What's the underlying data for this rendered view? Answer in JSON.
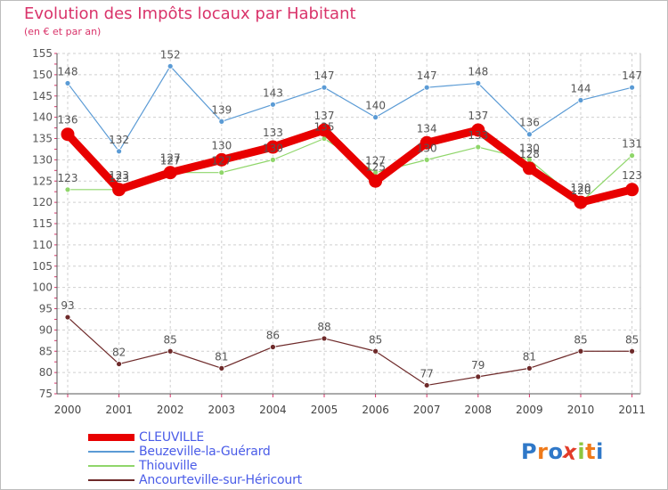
{
  "chart_data": {
    "type": "line",
    "title": "Evolution des Impôts locaux par Habitant",
    "subtitle": "(en € et par an)",
    "categories": [
      "2000",
      "2001",
      "2002",
      "2003",
      "2004",
      "2005",
      "2006",
      "2007",
      "2008",
      "2009",
      "2010",
      "2011"
    ],
    "ylim": [
      75,
      155
    ],
    "yticks": [
      75,
      80,
      85,
      90,
      95,
      100,
      105,
      110,
      115,
      120,
      125,
      130,
      135,
      140,
      145,
      150,
      155
    ],
    "grid": true,
    "legend_position": "bottom-left",
    "series": [
      {
        "name": "CLEUVILLE",
        "color": "#e80000",
        "values": [
          136,
          123,
          127,
          130,
          133,
          137,
          125,
          134,
          137,
          128,
          120,
          123
        ]
      },
      {
        "name": "Beuzeville-la-Guérard",
        "color": "#5b9bd5",
        "values": [
          148,
          132,
          152,
          139,
          143,
          147,
          140,
          147,
          148,
          136,
          144,
          147
        ]
      },
      {
        "name": "Thiouville",
        "color": "#8fd66a",
        "values": [
          123,
          123,
          127,
          127,
          130,
          135,
          127,
          130,
          133,
          130,
          120,
          131
        ]
      },
      {
        "name": "Ancourteville-sur-Héricourt",
        "color": "#6e2a2a",
        "values": [
          93,
          82,
          85,
          81,
          86,
          88,
          85,
          77,
          79,
          81,
          85,
          85
        ]
      }
    ]
  },
  "logo": {
    "letters": [
      "P",
      "r",
      "o",
      "x",
      "i",
      "t",
      "i"
    ],
    "colors": [
      "#2f78c8",
      "#ef7a1a",
      "#2f78c8",
      "#e23c2a",
      "#8cc63f",
      "#ef7a1a",
      "#2f78c8"
    ]
  }
}
